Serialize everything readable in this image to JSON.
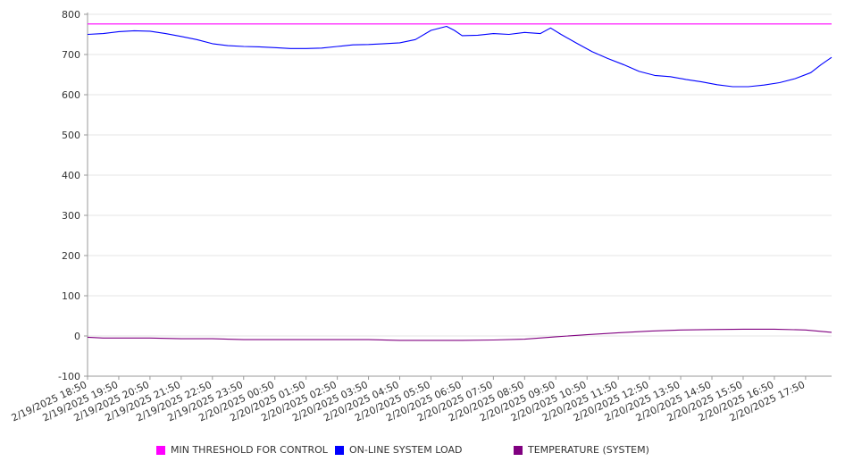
{
  "chart_data": {
    "type": "line",
    "title": "",
    "xlabel": "",
    "ylabel": "",
    "ylim": [
      -100,
      800
    ],
    "yticks": [
      -100,
      0,
      100,
      200,
      300,
      400,
      500,
      600,
      700,
      800
    ],
    "xtick_labels": [
      "2/19/2025 18:50",
      "2/19/2025 19:50",
      "2/19/2025 20:50",
      "2/19/2025 21:50",
      "2/19/2025 22:50",
      "2/19/2025 23:50",
      "2/20/2025 00:50",
      "2/20/2025 01:50",
      "2/20/2025 02:50",
      "2/20/2025 03:50",
      "2/20/2025 04:50",
      "2/20/2025 05:50",
      "2/20/2025 06:50",
      "2/20/2025 07:50",
      "2/20/2025 08:50",
      "2/20/2025 09:50",
      "2/20/2025 10:50",
      "2/20/2025 11:50",
      "2/20/2025 12:50",
      "2/20/2025 13:50",
      "2/20/2025 14:50",
      "2/20/2025 15:50",
      "2/20/2025 16:50",
      "2/20/2025 17:50"
    ],
    "grid": true,
    "legend_position": "bottom",
    "series": [
      {
        "name": "MIN THRESHOLD FOR CONTROL",
        "color": "#ff00ff",
        "points": [
          [
            "2/19/2025 18:50",
            776
          ],
          [
            "2/20/2025 18:40",
            776
          ]
        ]
      },
      {
        "name": "ON-LINE SYSTEM LOAD",
        "color": "#0000ff",
        "points": [
          [
            "2/19/2025 18:50",
            750
          ],
          [
            "2/19/2025 19:20",
            752
          ],
          [
            "2/19/2025 19:50",
            757
          ],
          [
            "2/19/2025 20:20",
            759
          ],
          [
            "2/19/2025 20:50",
            758
          ],
          [
            "2/19/2025 21:20",
            752
          ],
          [
            "2/19/2025 21:50",
            745
          ],
          [
            "2/19/2025 22:20",
            737
          ],
          [
            "2/19/2025 22:50",
            727
          ],
          [
            "2/19/2025 23:20",
            722
          ],
          [
            "2/19/2025 23:50",
            720
          ],
          [
            "2/20/2025 00:20",
            719
          ],
          [
            "2/20/2025 00:50",
            717
          ],
          [
            "2/20/2025 01:20",
            715
          ],
          [
            "2/20/2025 01:50",
            715
          ],
          [
            "2/20/2025 02:20",
            716
          ],
          [
            "2/20/2025 02:50",
            720
          ],
          [
            "2/20/2025 03:20",
            724
          ],
          [
            "2/20/2025 03:50",
            725
          ],
          [
            "2/20/2025 04:20",
            727
          ],
          [
            "2/20/2025 04:50",
            729
          ],
          [
            "2/20/2025 05:20",
            737
          ],
          [
            "2/20/2025 05:50",
            760
          ],
          [
            "2/20/2025 06:20",
            770
          ],
          [
            "2/20/2025 06:35",
            760
          ],
          [
            "2/20/2025 06:50",
            747
          ],
          [
            "2/20/2025 07:20",
            748
          ],
          [
            "2/20/2025 07:50",
            752
          ],
          [
            "2/20/2025 08:20",
            750
          ],
          [
            "2/20/2025 08:50",
            755
          ],
          [
            "2/20/2025 09:20",
            752
          ],
          [
            "2/20/2025 09:40",
            766
          ],
          [
            "2/20/2025 10:00",
            750
          ],
          [
            "2/20/2025 10:30",
            728
          ],
          [
            "2/20/2025 11:00",
            707
          ],
          [
            "2/20/2025 11:30",
            690
          ],
          [
            "2/20/2025 12:00",
            675
          ],
          [
            "2/20/2025 12:30",
            658
          ],
          [
            "2/20/2025 13:00",
            648
          ],
          [
            "2/20/2025 13:30",
            645
          ],
          [
            "2/20/2025 14:00",
            638
          ],
          [
            "2/20/2025 14:30",
            632
          ],
          [
            "2/20/2025 15:00",
            625
          ],
          [
            "2/20/2025 15:30",
            620
          ],
          [
            "2/20/2025 16:00",
            620
          ],
          [
            "2/20/2025 16:30",
            624
          ],
          [
            "2/20/2025 17:00",
            630
          ],
          [
            "2/20/2025 17:30",
            640
          ],
          [
            "2/20/2025 18:00",
            655
          ],
          [
            "2/20/2025 18:20",
            675
          ],
          [
            "2/20/2025 18:40",
            693
          ]
        ]
      },
      {
        "name": "TEMPERATURE (SYSTEM)",
        "color": "#800080",
        "points": [
          [
            "2/19/2025 18:50",
            -3
          ],
          [
            "2/19/2025 19:20",
            -5
          ],
          [
            "2/19/2025 19:50",
            -5
          ],
          [
            "2/19/2025 20:50",
            -5
          ],
          [
            "2/19/2025 21:50",
            -7
          ],
          [
            "2/19/2025 22:50",
            -7
          ],
          [
            "2/19/2025 23:50",
            -9
          ],
          [
            "2/20/2025 00:50",
            -9
          ],
          [
            "2/20/2025 01:50",
            -9
          ],
          [
            "2/20/2025 02:50",
            -9
          ],
          [
            "2/20/2025 03:50",
            -9
          ],
          [
            "2/20/2025 04:50",
            -11
          ],
          [
            "2/20/2025 05:50",
            -11
          ],
          [
            "2/20/2025 06:50",
            -11
          ],
          [
            "2/20/2025 07:50",
            -10
          ],
          [
            "2/20/2025 08:50",
            -8
          ],
          [
            "2/20/2025 09:50",
            -2
          ],
          [
            "2/20/2025 10:50",
            3
          ],
          [
            "2/20/2025 11:50",
            8
          ],
          [
            "2/20/2025 12:50",
            12
          ],
          [
            "2/20/2025 13:50",
            15
          ],
          [
            "2/20/2025 14:50",
            16
          ],
          [
            "2/20/2025 15:50",
            17
          ],
          [
            "2/20/2025 16:50",
            17
          ],
          [
            "2/20/2025 17:50",
            15
          ],
          [
            "2/20/2025 18:40",
            9
          ]
        ]
      }
    ]
  }
}
